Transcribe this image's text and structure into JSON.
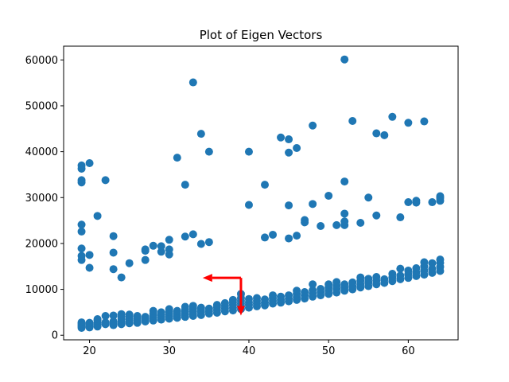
{
  "chart_data": {
    "type": "scatter",
    "title": "Plot of Eigen Vectors",
    "xlabel": "",
    "ylabel": "",
    "xlim": [
      16.75,
      66.25
    ],
    "ylim": [
      -1000,
      63000
    ],
    "xticks": [
      20,
      30,
      40,
      50,
      60
    ],
    "yticks": [
      0,
      10000,
      20000,
      30000,
      40000,
      50000,
      60000
    ],
    "xtick_labels": [
      "20",
      "30",
      "40",
      "50",
      "60"
    ],
    "ytick_labels": [
      "0",
      "10000",
      "20000",
      "30000",
      "40000",
      "50000",
      "60000"
    ],
    "grid": false,
    "legend": "none",
    "marker_color": "#1f77b4",
    "arrow_color": "#ff0000",
    "arrows": [
      {
        "from": [
          39,
          12500
        ],
        "to": [
          34.2,
          12500
        ]
      },
      {
        "from": [
          39,
          12500
        ],
        "to": [
          39,
          4300
        ]
      }
    ],
    "points": [
      [
        19,
        1600
      ],
      [
        19,
        1900
      ],
      [
        19,
        2200
      ],
      [
        19,
        2500
      ],
      [
        19,
        2800
      ],
      [
        19,
        16400
      ],
      [
        19,
        17300
      ],
      [
        19,
        18900
      ],
      [
        19,
        22600
      ],
      [
        19,
        24100
      ],
      [
        19,
        33300
      ],
      [
        19,
        33800
      ],
      [
        19,
        36300
      ],
      [
        19,
        37000
      ],
      [
        20,
        1700
      ],
      [
        20,
        2000
      ],
      [
        20,
        2400
      ],
      [
        20,
        2700
      ],
      [
        20,
        14700
      ],
      [
        20,
        17500
      ],
      [
        20,
        37500
      ],
      [
        21,
        1900
      ],
      [
        21,
        2300
      ],
      [
        21,
        2700
      ],
      [
        21,
        3200
      ],
      [
        21,
        3500
      ],
      [
        21,
        26000
      ],
      [
        22,
        2400
      ],
      [
        22,
        2800
      ],
      [
        22,
        4200
      ],
      [
        22,
        33800
      ],
      [
        23,
        2200
      ],
      [
        23,
        2600
      ],
      [
        23,
        3000
      ],
      [
        23,
        4300
      ],
      [
        23,
        14400
      ],
      [
        23,
        18000
      ],
      [
        23,
        21600
      ],
      [
        24,
        2400
      ],
      [
        24,
        2900
      ],
      [
        24,
        3500
      ],
      [
        24,
        4000
      ],
      [
        24,
        4600
      ],
      [
        24,
        12600
      ],
      [
        25,
        2600
      ],
      [
        25,
        3000
      ],
      [
        25,
        3500
      ],
      [
        25,
        4100
      ],
      [
        25,
        4500
      ],
      [
        25,
        15700
      ],
      [
        26,
        2700
      ],
      [
        26,
        3200
      ],
      [
        26,
        3700
      ],
      [
        26,
        4200
      ],
      [
        27,
        3000
      ],
      [
        27,
        3500
      ],
      [
        27,
        4000
      ],
      [
        27,
        16400
      ],
      [
        27,
        18400
      ],
      [
        27,
        18700
      ],
      [
        28,
        3200
      ],
      [
        28,
        3700
      ],
      [
        28,
        4300
      ],
      [
        28,
        4700
      ],
      [
        28,
        5300
      ],
      [
        28,
        19500
      ],
      [
        29,
        3400
      ],
      [
        29,
        3900
      ],
      [
        29,
        4400
      ],
      [
        29,
        5000
      ],
      [
        29,
        18200
      ],
      [
        29,
        19400
      ],
      [
        30,
        3600
      ],
      [
        30,
        4100
      ],
      [
        30,
        4600
      ],
      [
        30,
        5100
      ],
      [
        30,
        5700
      ],
      [
        30,
        17600
      ],
      [
        30,
        18700
      ],
      [
        30,
        20800
      ],
      [
        31,
        3800
      ],
      [
        31,
        4300
      ],
      [
        31,
        4800
      ],
      [
        31,
        5300
      ],
      [
        31,
        38700
      ],
      [
        32,
        4000
      ],
      [
        32,
        4500
      ],
      [
        32,
        5100
      ],
      [
        32,
        5600
      ],
      [
        32,
        6200
      ],
      [
        32,
        21500
      ],
      [
        32,
        32800
      ],
      [
        33,
        4200
      ],
      [
        33,
        4700
      ],
      [
        33,
        5200
      ],
      [
        33,
        5800
      ],
      [
        33,
        6400
      ],
      [
        33,
        22000
      ],
      [
        33,
        55100
      ],
      [
        34,
        4400
      ],
      [
        34,
        5000
      ],
      [
        34,
        5500
      ],
      [
        34,
        6000
      ],
      [
        34,
        19900
      ],
      [
        34,
        43900
      ],
      [
        35,
        4700
      ],
      [
        35,
        5200
      ],
      [
        35,
        5800
      ],
      [
        35,
        20300
      ],
      [
        35,
        40000
      ],
      [
        36,
        4900
      ],
      [
        36,
        5500
      ],
      [
        36,
        6100
      ],
      [
        36,
        6600
      ],
      [
        37,
        5200
      ],
      [
        37,
        5800
      ],
      [
        37,
        6400
      ],
      [
        37,
        7000
      ],
      [
        38,
        5400
      ],
      [
        38,
        6000
      ],
      [
        38,
        6600
      ],
      [
        38,
        7200
      ],
      [
        38,
        7700
      ],
      [
        39,
        5700
      ],
      [
        39,
        6300
      ],
      [
        39,
        6900
      ],
      [
        39,
        7500
      ],
      [
        39,
        8100
      ],
      [
        39,
        9000
      ],
      [
        40,
        6000
      ],
      [
        40,
        6600
      ],
      [
        40,
        7200
      ],
      [
        40,
        7900
      ],
      [
        40,
        28400
      ],
      [
        40,
        40000
      ],
      [
        41,
        6300
      ],
      [
        41,
        6900
      ],
      [
        41,
        7500
      ],
      [
        41,
        8100
      ],
      [
        42,
        6500
      ],
      [
        42,
        7100
      ],
      [
        42,
        7800
      ],
      [
        42,
        21300
      ],
      [
        42,
        32800
      ],
      [
        43,
        6900
      ],
      [
        43,
        7500
      ],
      [
        43,
        8100
      ],
      [
        43,
        8700
      ],
      [
        43,
        21900
      ],
      [
        44,
        7100
      ],
      [
        44,
        7700
      ],
      [
        44,
        8400
      ],
      [
        44,
        43100
      ],
      [
        45,
        7400
      ],
      [
        45,
        8000
      ],
      [
        45,
        8700
      ],
      [
        45,
        21100
      ],
      [
        45,
        28300
      ],
      [
        45,
        39800
      ],
      [
        45,
        42700
      ],
      [
        46,
        7700
      ],
      [
        46,
        8300
      ],
      [
        46,
        9000
      ],
      [
        46,
        9700
      ],
      [
        46,
        21700
      ],
      [
        46,
        40800
      ],
      [
        47,
        8000
      ],
      [
        47,
        8700
      ],
      [
        47,
        9400
      ],
      [
        47,
        24600
      ],
      [
        47,
        25100
      ],
      [
        48,
        8400
      ],
      [
        48,
        9100
      ],
      [
        48,
        9800
      ],
      [
        48,
        11100
      ],
      [
        48,
        28600
      ],
      [
        48,
        45700
      ],
      [
        49,
        8700
      ],
      [
        49,
        9400
      ],
      [
        49,
        10100
      ],
      [
        49,
        23800
      ],
      [
        50,
        9000
      ],
      [
        50,
        9700
      ],
      [
        50,
        10400
      ],
      [
        50,
        11100
      ],
      [
        50,
        30400
      ],
      [
        51,
        9300
      ],
      [
        51,
        10100
      ],
      [
        51,
        10800
      ],
      [
        51,
        11600
      ],
      [
        51,
        24000
      ],
      [
        52,
        9700
      ],
      [
        52,
        10400
      ],
      [
        52,
        11100
      ],
      [
        52,
        24000
      ],
      [
        52,
        24800
      ],
      [
        52,
        26500
      ],
      [
        52,
        33500
      ],
      [
        52,
        60100
      ],
      [
        53,
        10000
      ],
      [
        53,
        10700
      ],
      [
        53,
        11500
      ],
      [
        53,
        46700
      ],
      [
        54,
        10400
      ],
      [
        54,
        11100
      ],
      [
        54,
        11900
      ],
      [
        54,
        12600
      ],
      [
        54,
        24500
      ],
      [
        55,
        10700
      ],
      [
        55,
        11500
      ],
      [
        55,
        12300
      ],
      [
        55,
        30000
      ],
      [
        56,
        11100
      ],
      [
        56,
        11900
      ],
      [
        56,
        12700
      ],
      [
        56,
        26100
      ],
      [
        56,
        44000
      ],
      [
        57,
        11400
      ],
      [
        57,
        12200
      ],
      [
        57,
        43600
      ],
      [
        58,
        11800
      ],
      [
        58,
        12600
      ],
      [
        58,
        13400
      ],
      [
        58,
        47600
      ],
      [
        59,
        12200
      ],
      [
        59,
        13000
      ],
      [
        59,
        14500
      ],
      [
        59,
        25700
      ],
      [
        60,
        12500
      ],
      [
        60,
        13300
      ],
      [
        60,
        14100
      ],
      [
        60,
        29000
      ],
      [
        60,
        46300
      ],
      [
        61,
        12900
      ],
      [
        61,
        13700
      ],
      [
        61,
        14600
      ],
      [
        61,
        28900
      ],
      [
        61,
        29300
      ],
      [
        62,
        13200
      ],
      [
        62,
        14100
      ],
      [
        62,
        15000
      ],
      [
        62,
        15900
      ],
      [
        62,
        46600
      ],
      [
        63,
        13600
      ],
      [
        63,
        14500
      ],
      [
        63,
        15700
      ],
      [
        63,
        29000
      ],
      [
        64,
        14000
      ],
      [
        64,
        14900
      ],
      [
        64,
        15800
      ],
      [
        64,
        16500
      ],
      [
        64,
        29300
      ],
      [
        64,
        29900
      ],
      [
        64,
        30300
      ]
    ]
  }
}
